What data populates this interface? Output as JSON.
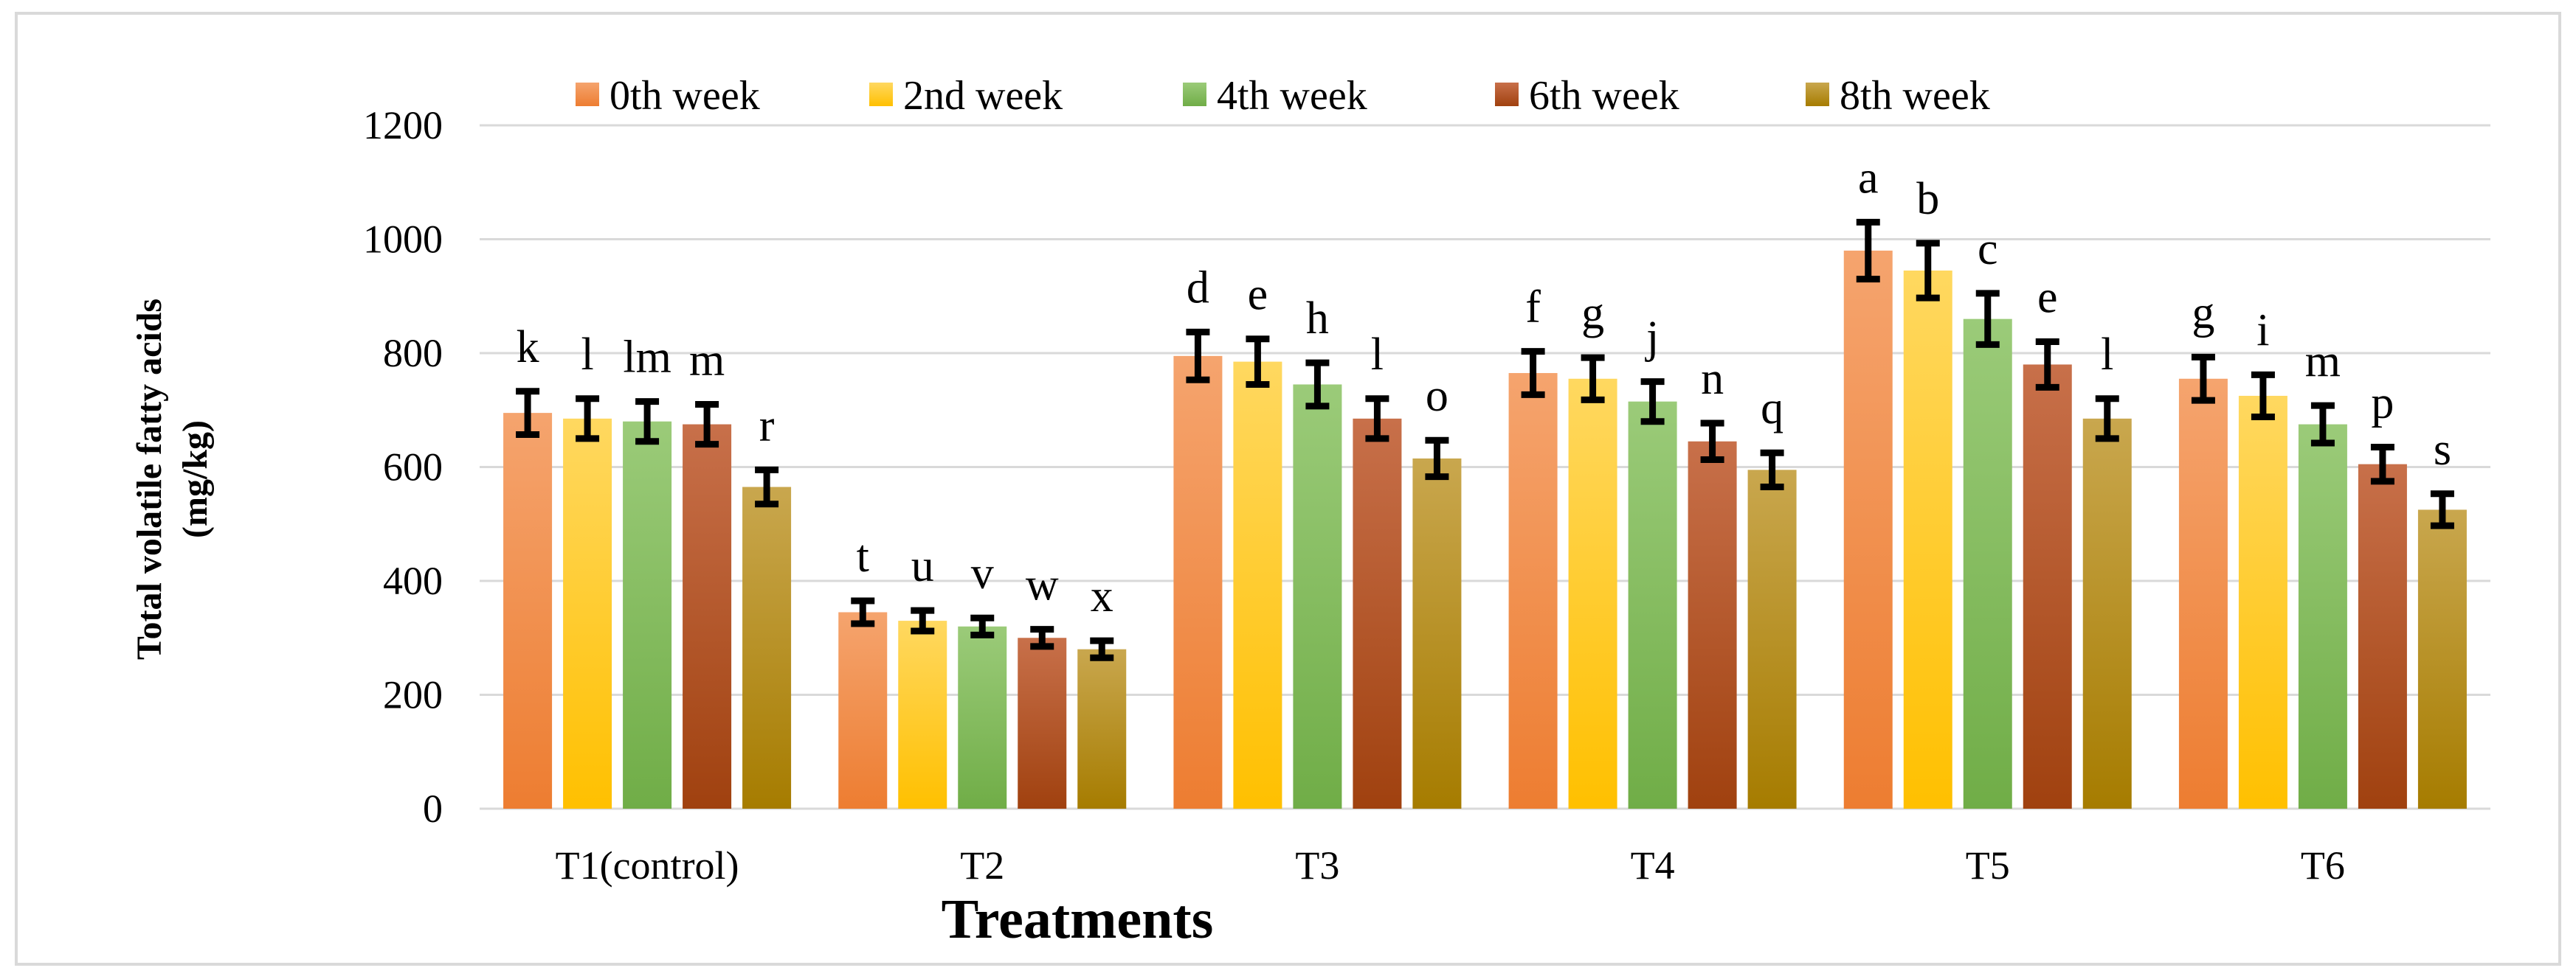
{
  "chart_data": {
    "type": "bar",
    "title": "",
    "xlabel": "Treatments",
    "ylabel": [
      "Total volatile fatty acids",
      "(mg/kg)"
    ],
    "ylim": [
      0,
      1200
    ],
    "yticks": [
      0,
      200,
      400,
      600,
      800,
      1000,
      1200
    ],
    "grid": true,
    "legend_position": "top",
    "categories": [
      "T1(control)",
      "T2",
      "T3",
      "T4",
      "T5",
      "T6"
    ],
    "series": [
      {
        "name": "0th week",
        "color": "#ED7D31",
        "colorLight": "#F5A46E",
        "values": [
          695,
          345,
          795,
          765,
          980,
          755
        ],
        "errors": [
          38,
          20,
          42,
          38,
          50,
          38
        ],
        "labels": [
          "k",
          "t",
          "d",
          "f",
          "a",
          "g"
        ]
      },
      {
        "name": "2nd week",
        "color": "#FFC000",
        "colorLight": "#FFD860",
        "values": [
          685,
          330,
          785,
          755,
          945,
          725
        ],
        "errors": [
          35,
          18,
          40,
          37,
          48,
          37
        ],
        "labels": [
          "l",
          "u",
          "e",
          "g",
          "b",
          "i"
        ]
      },
      {
        "name": "4th week",
        "color": "#70AD47",
        "colorLight": "#9BCB79",
        "values": [
          680,
          320,
          745,
          715,
          860,
          675
        ],
        "errors": [
          35,
          15,
          38,
          35,
          45,
          33
        ],
        "labels": [
          "lm",
          "v",
          "h",
          "j",
          "c",
          "m"
        ]
      },
      {
        "name": "6th week",
        "color": "#A0410F",
        "colorLight": "#C8704A",
        "values": [
          675,
          300,
          685,
          645,
          780,
          605
        ],
        "errors": [
          35,
          15,
          35,
          32,
          40,
          30
        ],
        "labels": [
          "m",
          "w",
          "l",
          "n",
          "e",
          "p"
        ]
      },
      {
        "name": "8th week",
        "color": "#A67C00",
        "colorLight": "#C9A74E",
        "values": [
          565,
          280,
          615,
          595,
          685,
          525
        ],
        "errors": [
          30,
          15,
          32,
          30,
          35,
          28
        ],
        "labels": [
          "r",
          "x",
          "o",
          "q",
          "l",
          "s"
        ]
      }
    ]
  }
}
